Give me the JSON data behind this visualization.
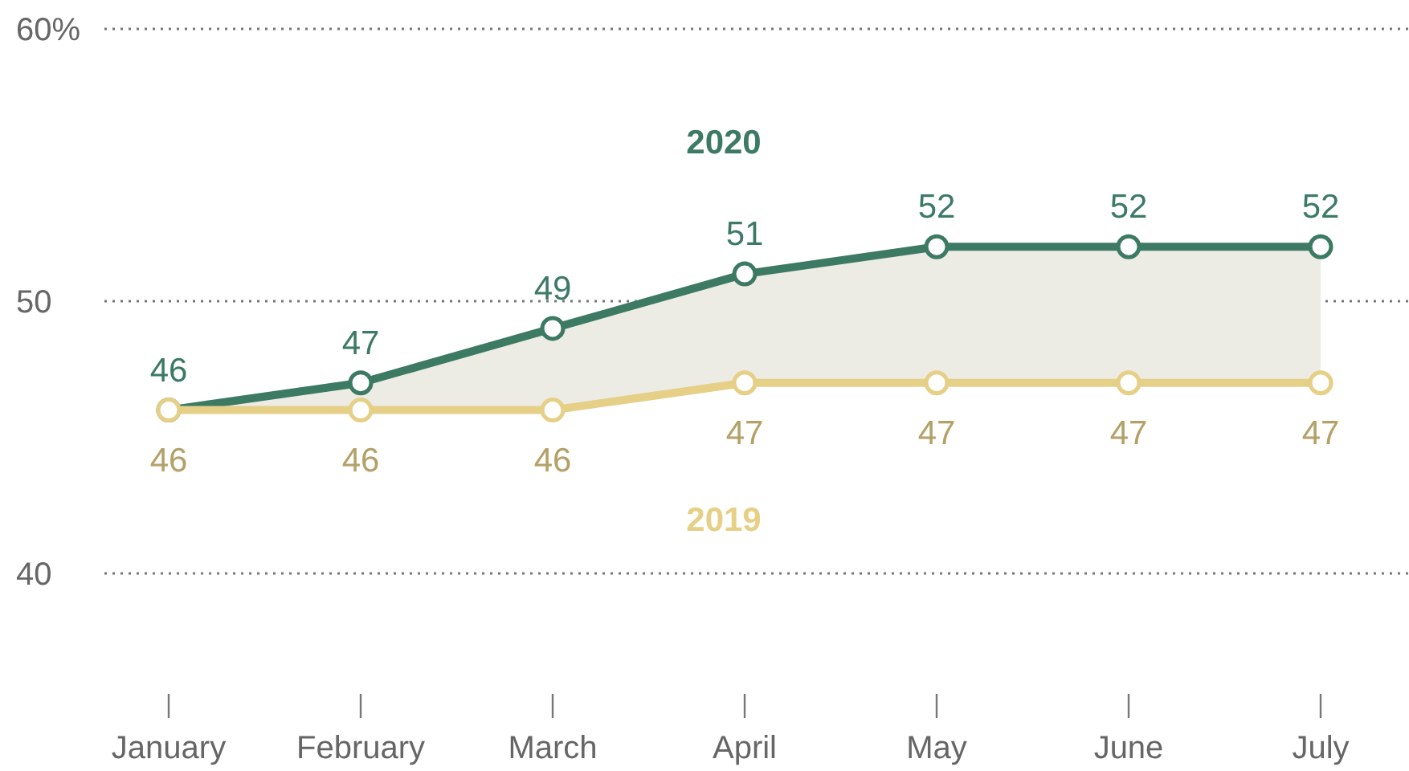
{
  "chart_data": {
    "type": "line",
    "categories": [
      "January",
      "February",
      "March",
      "April",
      "May",
      "June",
      "July"
    ],
    "series": [
      {
        "name": "2020",
        "color": "#3d7a64",
        "values": [
          46,
          47,
          49,
          51,
          52,
          52,
          52
        ],
        "lower": [
          46,
          46,
          46,
          47,
          47,
          47,
          47
        ],
        "upper": [
          46,
          47,
          49,
          51,
          52,
          52,
          52
        ]
      },
      {
        "name": "2019",
        "color": "#e6cf86",
        "values": [
          46,
          46,
          46,
          47,
          47,
          47,
          47
        ]
      }
    ],
    "ylim": [
      40,
      60
    ],
    "yticks": [
      40,
      50,
      {
        "value": 60,
        "label": "60%"
      }
    ],
    "grid": "y",
    "marker": "circle",
    "line_style": "solid",
    "data_labels": true
  }
}
